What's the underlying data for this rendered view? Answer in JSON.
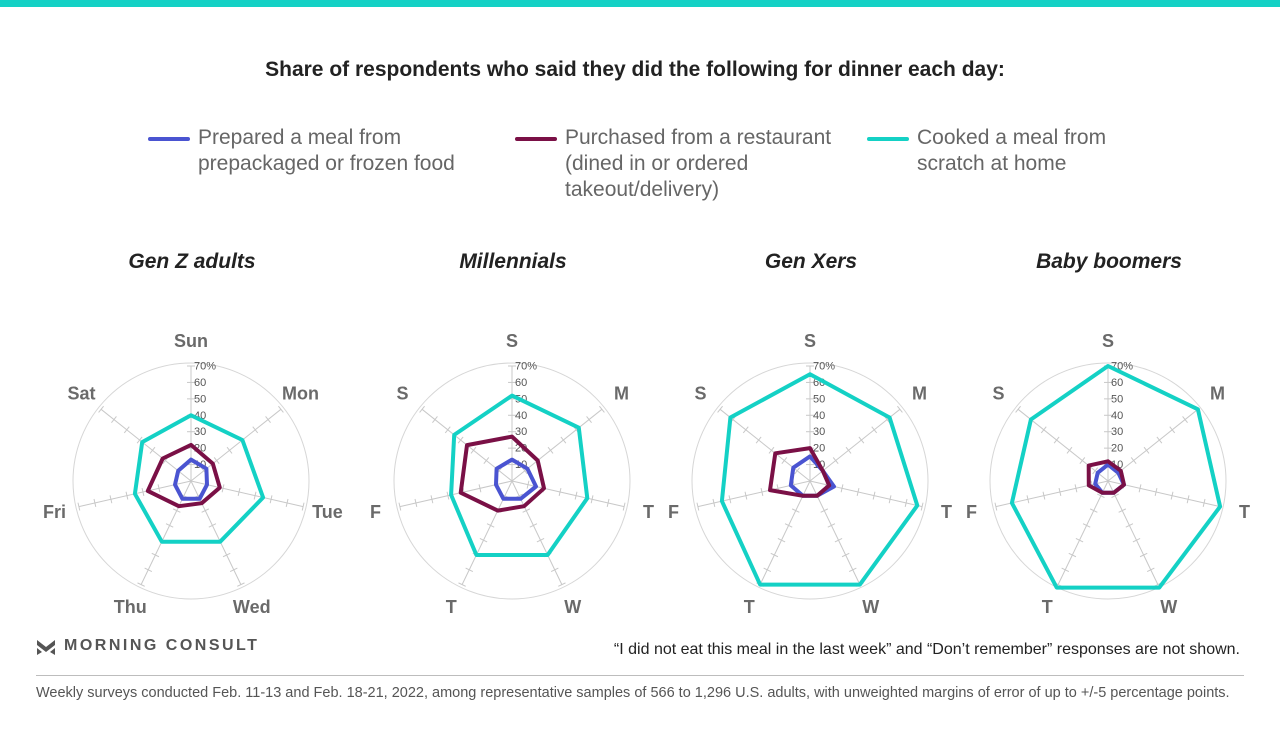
{
  "headline": "Share of respondents who said they did the following for dinner each day:",
  "legend": [
    {
      "label": "Prepared a meal from prepackaged or frozen food",
      "color": "#4a54d1"
    },
    {
      "label": "Purchased from a restaurant (dined in or ordered takeout/delivery)",
      "color": "#7a1046"
    },
    {
      "label": "Cooked a meal from scratch at home",
      "color": "#14d1c5"
    }
  ],
  "brand": "MORNING CONSULT",
  "note": "“I did not eat this meal in the last week” and “Don’t remember” responses are not shown.",
  "footnote": "Weekly surveys conducted Feb. 11-13 and Feb. 18-21, 2022, among representative samples of 566 to 1,296 U.S. adults, with unweighted margins of error of up to +/-5 percentage points.",
  "chart_data": [
    {
      "type": "radar",
      "title": "Gen Z adults",
      "axes": [
        "Sun",
        "Mon",
        "Tue",
        "Wed",
        "Thu",
        "Fri",
        "Sat"
      ],
      "rlim": [
        0,
        70
      ],
      "ticks": [
        "70%",
        "60",
        "50",
        "40",
        "30",
        "20",
        "10"
      ],
      "series": [
        {
          "name": "Prepared a meal from prepackaged or frozen food",
          "values": [
            13,
            12,
            10,
            12,
            12,
            10,
            10
          ]
        },
        {
          "name": "Purchased from a restaurant (dined in or ordered takeout/delivery)",
          "values": [
            22,
            17,
            18,
            15,
            17,
            27,
            22
          ]
        },
        {
          "name": "Cooked a meal from scratch at home",
          "values": [
            40,
            40,
            45,
            41,
            41,
            35,
            38
          ]
        }
      ]
    },
    {
      "type": "radar",
      "title": "Millennials",
      "axes": [
        "S",
        "M",
        "T",
        "W",
        "T",
        "F",
        "S"
      ],
      "rlim": [
        0,
        70
      ],
      "ticks": [
        "70%",
        "60",
        "50",
        "40",
        "30",
        "20",
        "10"
      ],
      "series": [
        {
          "name": "Prepared a meal from prepackaged or frozen food",
          "values": [
            13,
            12,
            15,
            12,
            12,
            10,
            12
          ]
        },
        {
          "name": "Purchased from a restaurant (dined in or ordered takeout/delivery)",
          "values": [
            27,
            20,
            20,
            17,
            20,
            32,
            35
          ]
        },
        {
          "name": "Cooked a meal from scratch at home",
          "values": [
            52,
            52,
            47,
            50,
            50,
            38,
            45
          ]
        }
      ]
    },
    {
      "type": "radar",
      "title": "Gen Xers",
      "axes": [
        "S",
        "M",
        "T",
        "W",
        "T",
        "F",
        "S"
      ],
      "rlim": [
        0,
        70
      ],
      "ticks": [
        "70%",
        "60",
        "50",
        "40",
        "30",
        "20",
        "10"
      ],
      "series": [
        {
          "name": "Prepared a meal from prepackaged or frozen food",
          "values": [
            15,
            10,
            15,
            10,
            10,
            12,
            13
          ]
        },
        {
          "name": "Purchased from a restaurant (dined in or ordered takeout/delivery)",
          "values": [
            20,
            10,
            12,
            10,
            10,
            25,
            27
          ]
        },
        {
          "name": "Cooked a meal from scratch at home",
          "values": [
            65,
            62,
            67,
            70,
            70,
            55,
            62
          ]
        }
      ]
    },
    {
      "type": "radar",
      "title": "Baby boomers",
      "axes": [
        "S",
        "M",
        "T",
        "W",
        "T",
        "F",
        "S"
      ],
      "rlim": [
        0,
        70
      ],
      "ticks": [
        "70%",
        "60",
        "50",
        "40",
        "30",
        "20",
        "10"
      ],
      "series": [
        {
          "name": "Prepared a meal from prepackaged or frozen food",
          "values": [
            10,
            8,
            10,
            8,
            8,
            8,
            8
          ]
        },
        {
          "name": "Purchased from a restaurant (dined in or ordered takeout/delivery)",
          "values": [
            12,
            10,
            10,
            8,
            8,
            12,
            15
          ]
        },
        {
          "name": "Cooked a meal from scratch at home",
          "values": [
            70,
            70,
            70,
            72,
            72,
            60,
            60
          ]
        }
      ]
    }
  ]
}
